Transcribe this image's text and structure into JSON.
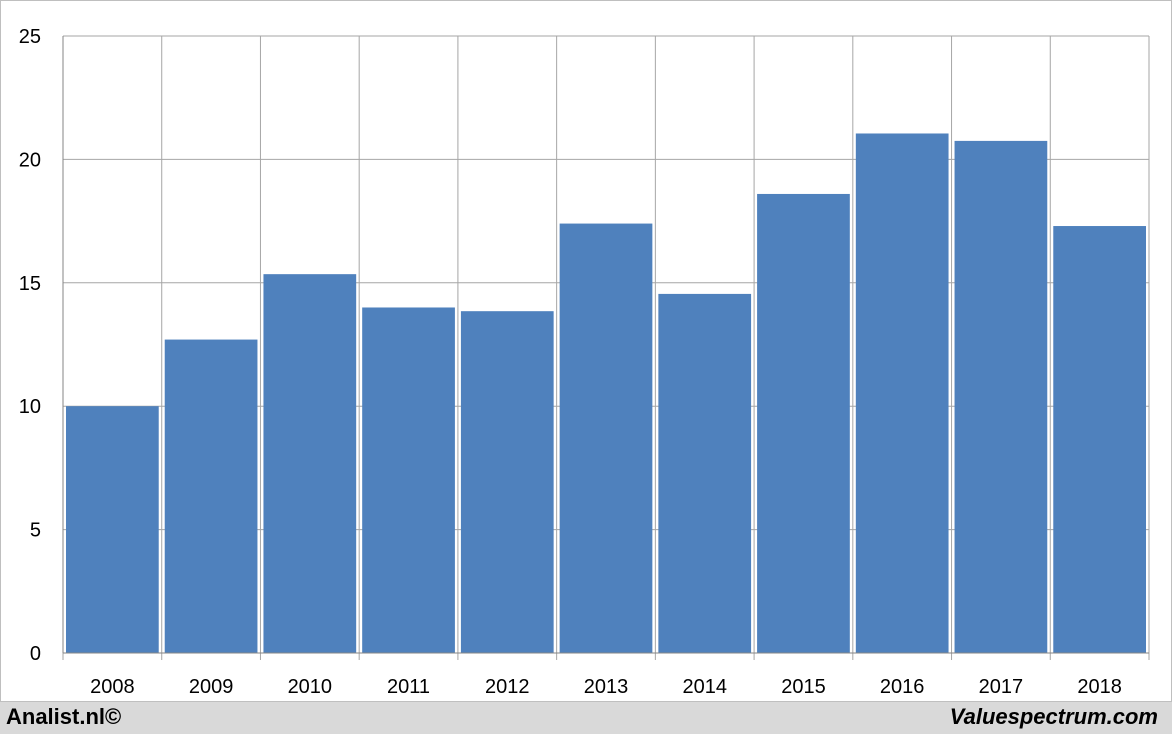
{
  "chart_data": {
    "type": "bar",
    "title": "",
    "xlabel": "",
    "ylabel": "",
    "categories": [
      "2008",
      "2009",
      "2010",
      "2011",
      "2012",
      "2013",
      "2014",
      "2015",
      "2016",
      "2017",
      "2018"
    ],
    "values": [
      10.0,
      12.7,
      15.35,
      14.0,
      13.85,
      17.4,
      14.55,
      18.6,
      21.05,
      20.75,
      17.3
    ],
    "ylim": [
      0,
      25
    ],
    "yticks": [
      "0",
      "5",
      "10",
      "15",
      "20",
      "25"
    ],
    "grid": true,
    "legend": "none",
    "bar_color": "#4f81bd"
  },
  "footer": {
    "left_text": "Analist.nl©",
    "right_text": "Valuespectrum.com"
  }
}
